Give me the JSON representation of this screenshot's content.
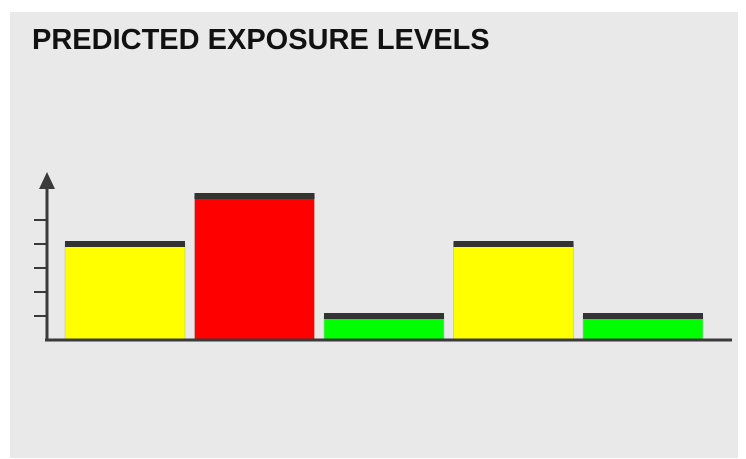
{
  "chart_data": {
    "type": "bar",
    "title": "PREDICTED EXPOSURE LEVELS",
    "xlabel": "",
    "ylabel": "",
    "categories": [
      "",
      "",
      "",
      "",
      ""
    ],
    "values": [
      4.0,
      6.0,
      1.0,
      4.0,
      1.0
    ],
    "bar_colors": [
      "#ffff00",
      "#ff0000",
      "#00ff00",
      "#ffff00",
      "#00ff00"
    ],
    "ylim": [
      0,
      7
    ],
    "y_ticks": [
      1,
      2,
      3,
      4,
      5
    ],
    "grid": false,
    "legend": "none"
  },
  "colors": {
    "panel_background": "#e9e9e9",
    "axis": "#3a3a3a",
    "bar_cap": "#333333",
    "title_text": "#111111"
  }
}
